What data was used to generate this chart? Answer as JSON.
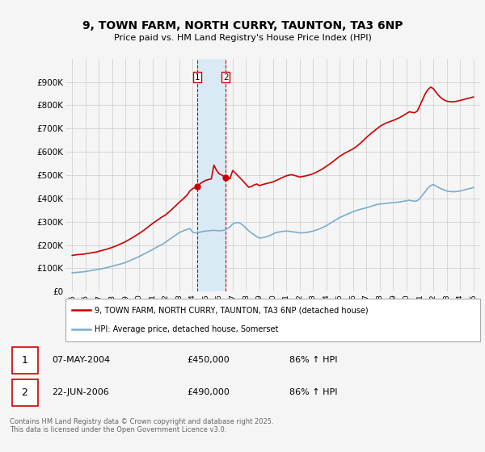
{
  "title": "9, TOWN FARM, NORTH CURRY, TAUNTON, TA3 6NP",
  "subtitle": "Price paid vs. HM Land Registry's House Price Index (HPI)",
  "legend_label_red": "9, TOWN FARM, NORTH CURRY, TAUNTON, TA3 6NP (detached house)",
  "legend_label_blue": "HPI: Average price, detached house, Somerset",
  "footer": "Contains HM Land Registry data © Crown copyright and database right 2025.\nThis data is licensed under the Open Government Licence v3.0.",
  "transactions": [
    {
      "label": "1",
      "date": "07-MAY-2004",
      "price": 450000,
      "hpi_pct": "86%",
      "direction": "↑"
    },
    {
      "label": "2",
      "date": "22-JUN-2006",
      "price": 490000,
      "hpi_pct": "86%",
      "direction": "↑"
    }
  ],
  "transaction_dates_num": [
    2004.35,
    2006.47
  ],
  "transaction_prices": [
    450000,
    490000
  ],
  "red_color": "#cc0000",
  "blue_color": "#7aadcf",
  "shaded_color": "#daeaf5",
  "vline_color": "#cc0000",
  "background_color": "#f5f5f5",
  "grid_color": "#cccccc",
  "ylim": [
    0,
    1000000
  ],
  "yticks": [
    0,
    100000,
    200000,
    300000,
    400000,
    500000,
    600000,
    700000,
    800000,
    900000
  ],
  "ytick_labels": [
    "£0",
    "£100K",
    "£200K",
    "£300K",
    "£400K",
    "£500K",
    "£600K",
    "£700K",
    "£800K",
    "£900K"
  ],
  "xlim": [
    1994.5,
    2025.5
  ],
  "xtick_years": [
    1995,
    1996,
    1997,
    1998,
    1999,
    2000,
    2001,
    2002,
    2003,
    2004,
    2005,
    2006,
    2007,
    2008,
    2009,
    2010,
    2011,
    2012,
    2013,
    2014,
    2015,
    2016,
    2017,
    2018,
    2019,
    2020,
    2021,
    2022,
    2023,
    2024,
    2025
  ],
  "hpi_x": [
    1995.0,
    1995.1,
    1995.2,
    1995.3,
    1995.4,
    1995.5,
    1995.6,
    1995.7,
    1995.8,
    1995.9,
    1996.0,
    1996.1,
    1996.2,
    1996.3,
    1996.4,
    1996.5,
    1996.6,
    1996.7,
    1996.8,
    1996.9,
    1997.0,
    1997.2,
    1997.4,
    1997.6,
    1997.8,
    1998.0,
    1998.2,
    1998.4,
    1998.6,
    1998.8,
    1999.0,
    1999.2,
    1999.4,
    1999.6,
    1999.8,
    2000.0,
    2000.2,
    2000.4,
    2000.6,
    2000.8,
    2001.0,
    2001.2,
    2001.4,
    2001.6,
    2001.8,
    2002.0,
    2002.2,
    2002.4,
    2002.6,
    2002.8,
    2003.0,
    2003.2,
    2003.4,
    2003.6,
    2003.8,
    2004.0,
    2004.2,
    2004.4,
    2004.6,
    2004.8,
    2005.0,
    2005.2,
    2005.4,
    2005.6,
    2005.8,
    2006.0,
    2006.2,
    2006.4,
    2006.6,
    2006.8,
    2007.0,
    2007.2,
    2007.4,
    2007.6,
    2007.8,
    2008.0,
    2008.2,
    2008.4,
    2008.6,
    2008.8,
    2009.0,
    2009.2,
    2009.4,
    2009.6,
    2009.8,
    2010.0,
    2010.2,
    2010.4,
    2010.6,
    2010.8,
    2011.0,
    2011.2,
    2011.4,
    2011.6,
    2011.8,
    2012.0,
    2012.2,
    2012.4,
    2012.6,
    2012.8,
    2013.0,
    2013.2,
    2013.4,
    2013.6,
    2013.8,
    2014.0,
    2014.2,
    2014.4,
    2014.6,
    2014.8,
    2015.0,
    2015.2,
    2015.4,
    2015.6,
    2015.8,
    2016.0,
    2016.2,
    2016.4,
    2016.6,
    2016.8,
    2017.0,
    2017.2,
    2017.4,
    2017.6,
    2017.8,
    2018.0,
    2018.2,
    2018.4,
    2018.6,
    2018.8,
    2019.0,
    2019.2,
    2019.4,
    2019.6,
    2019.8,
    2020.0,
    2020.2,
    2020.4,
    2020.6,
    2020.8,
    2021.0,
    2021.2,
    2021.4,
    2021.6,
    2021.8,
    2022.0,
    2022.2,
    2022.4,
    2022.6,
    2022.8,
    2023.0,
    2023.2,
    2023.4,
    2023.6,
    2023.8,
    2024.0,
    2024.2,
    2024.4,
    2024.6,
    2024.8,
    2025.0
  ],
  "hpi_y": [
    80000,
    81000,
    81500,
    82000,
    82500,
    83000,
    83500,
    84000,
    84500,
    85000,
    86000,
    87000,
    88000,
    89000,
    90000,
    91000,
    92000,
    93000,
    93500,
    94000,
    96000,
    98000,
    100000,
    103000,
    106000,
    109000,
    112000,
    115000,
    118000,
    121000,
    125000,
    130000,
    135000,
    140000,
    145000,
    150000,
    156000,
    162000,
    168000,
    174000,
    180000,
    187000,
    193000,
    199000,
    205000,
    213000,
    221000,
    229000,
    237000,
    245000,
    253000,
    258000,
    263000,
    267000,
    271000,
    255000,
    252000,
    253000,
    256000,
    258000,
    260000,
    261000,
    262000,
    263000,
    262000,
    261000,
    262000,
    264000,
    270000,
    278000,
    290000,
    295000,
    297000,
    292000,
    283000,
    272000,
    261000,
    252000,
    244000,
    236000,
    230000,
    231000,
    233000,
    237000,
    241000,
    247000,
    252000,
    255000,
    257000,
    259000,
    260000,
    259000,
    257000,
    256000,
    254000,
    252000,
    252000,
    253000,
    255000,
    257000,
    260000,
    263000,
    267000,
    272000,
    277000,
    283000,
    290000,
    297000,
    304000,
    311000,
    318000,
    323000,
    328000,
    333000,
    338000,
    343000,
    347000,
    351000,
    354000,
    357000,
    360000,
    363000,
    367000,
    371000,
    374000,
    376000,
    377000,
    378000,
    380000,
    381000,
    382000,
    383000,
    384000,
    386000,
    388000,
    390000,
    392000,
    390000,
    388000,
    390000,
    400000,
    415000,
    430000,
    445000,
    455000,
    460000,
    453000,
    447000,
    441000,
    437000,
    432000,
    430000,
    429000,
    429000,
    430000,
    432000,
    435000,
    438000,
    441000,
    444000,
    447000
  ],
  "red_x": [
    1995.0,
    1995.1,
    1995.2,
    1995.3,
    1995.4,
    1995.5,
    1995.6,
    1995.7,
    1995.8,
    1995.9,
    1996.0,
    1996.1,
    1996.2,
    1996.3,
    1996.4,
    1996.5,
    1996.6,
    1996.7,
    1996.8,
    1996.9,
    1997.0,
    1997.2,
    1997.4,
    1997.6,
    1997.8,
    1998.0,
    1998.2,
    1998.4,
    1998.6,
    1998.8,
    1999.0,
    1999.2,
    1999.4,
    1999.6,
    1999.8,
    2000.0,
    2000.2,
    2000.4,
    2000.6,
    2000.8,
    2001.0,
    2001.2,
    2001.4,
    2001.6,
    2001.8,
    2002.0,
    2002.2,
    2002.4,
    2002.6,
    2002.8,
    2003.0,
    2003.2,
    2003.4,
    2003.6,
    2003.8,
    2004.0,
    2004.2,
    2004.35,
    2004.6,
    2004.8,
    2005.0,
    2005.2,
    2005.4,
    2005.6,
    2005.8,
    2006.0,
    2006.2,
    2006.47,
    2006.6,
    2006.8,
    2007.0,
    2007.2,
    2007.4,
    2007.6,
    2007.8,
    2008.0,
    2008.2,
    2008.4,
    2008.6,
    2008.8,
    2009.0,
    2009.2,
    2009.4,
    2009.6,
    2009.8,
    2010.0,
    2010.2,
    2010.4,
    2010.6,
    2010.8,
    2011.0,
    2011.2,
    2011.4,
    2011.6,
    2011.8,
    2012.0,
    2012.2,
    2012.4,
    2012.6,
    2012.8,
    2013.0,
    2013.2,
    2013.4,
    2013.6,
    2013.8,
    2014.0,
    2014.2,
    2014.4,
    2014.6,
    2014.8,
    2015.0,
    2015.2,
    2015.4,
    2015.6,
    2015.8,
    2016.0,
    2016.2,
    2016.4,
    2016.6,
    2016.8,
    2017.0,
    2017.2,
    2017.4,
    2017.6,
    2017.8,
    2018.0,
    2018.2,
    2018.4,
    2018.6,
    2018.8,
    2019.0,
    2019.2,
    2019.4,
    2019.6,
    2019.8,
    2020.0,
    2020.2,
    2020.4,
    2020.6,
    2020.8,
    2021.0,
    2021.2,
    2021.4,
    2021.6,
    2021.8,
    2022.0,
    2022.2,
    2022.4,
    2022.6,
    2022.8,
    2023.0,
    2023.2,
    2023.4,
    2023.6,
    2023.8,
    2024.0,
    2024.2,
    2024.4,
    2024.6,
    2024.8,
    2025.0
  ],
  "red_y": [
    155000,
    156000,
    157000,
    158000,
    158500,
    159000,
    159500,
    160000,
    160500,
    161000,
    162000,
    163000,
    164000,
    165000,
    166000,
    167000,
    168000,
    169000,
    170000,
    171000,
    173000,
    176000,
    179000,
    182000,
    186000,
    190000,
    194000,
    199000,
    204000,
    209000,
    215000,
    221000,
    228000,
    235000,
    242000,
    249000,
    257000,
    265000,
    274000,
    283000,
    292000,
    300000,
    308000,
    316000,
    323000,
    330000,
    340000,
    350000,
    361000,
    372000,
    383000,
    393000,
    404000,
    415000,
    432000,
    442000,
    447000,
    450000,
    465000,
    472000,
    478000,
    481000,
    484000,
    543000,
    520000,
    505000,
    500000,
    490000,
    488000,
    485000,
    520000,
    509000,
    497000,
    485000,
    473000,
    460000,
    448000,
    451000,
    458000,
    462000,
    455000,
    459000,
    462000,
    465000,
    468000,
    471000,
    476000,
    481000,
    487000,
    492000,
    497000,
    500000,
    502000,
    499000,
    496000,
    492000,
    494000,
    496000,
    499000,
    502000,
    506000,
    511000,
    517000,
    523000,
    530000,
    538000,
    546000,
    554000,
    563000,
    572000,
    581000,
    588000,
    595000,
    601000,
    607000,
    613000,
    621000,
    630000,
    640000,
    651000,
    662000,
    672000,
    682000,
    691000,
    700000,
    709000,
    716000,
    722000,
    727000,
    731000,
    735000,
    740000,
    745000,
    751000,
    758000,
    765000,
    772000,
    770000,
    768000,
    775000,
    800000,
    825000,
    850000,
    868000,
    878000,
    872000,
    856000,
    842000,
    831000,
    823000,
    818000,
    816000,
    815000,
    816000,
    818000,
    821000,
    824000,
    827000,
    830000,
    833000,
    836000
  ]
}
